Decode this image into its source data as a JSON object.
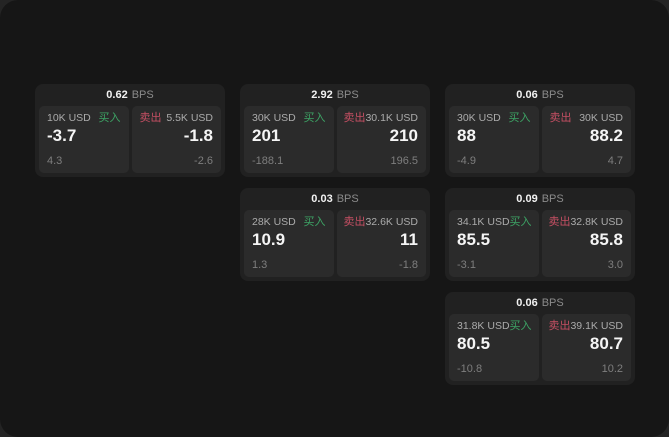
{
  "labels": {
    "buy": "买入",
    "sell": "卖出",
    "bps_unit": "BPS"
  },
  "colors": {
    "buy": "#3da465",
    "sell": "#c54f63",
    "window_bg": "#161616",
    "card_bg": "#212121",
    "panel_bg": "#2b2b2b"
  },
  "cards": [
    {
      "row": 1,
      "col": 1,
      "bps": "0.62",
      "buy": {
        "amount": "10K USD",
        "value": "-3.7",
        "sub": "4.3"
      },
      "sell": {
        "amount": "5.5K USD",
        "value": "-1.8",
        "sub": "-2.6"
      }
    },
    {
      "row": 1,
      "col": 2,
      "bps": "2.92",
      "buy": {
        "amount": "30K USD",
        "value": "201",
        "sub": "-188.1"
      },
      "sell": {
        "amount": "30.1K USD",
        "value": "210",
        "sub": "196.5"
      }
    },
    {
      "row": 1,
      "col": 3,
      "bps": "0.06",
      "buy": {
        "amount": "30K USD",
        "value": "88",
        "sub": "-4.9"
      },
      "sell": {
        "amount": "30K USD",
        "value": "88.2",
        "sub": "4.7"
      }
    },
    {
      "row": 2,
      "col": 2,
      "bps": "0.03",
      "buy": {
        "amount": "28K USD",
        "value": "10.9",
        "sub": "1.3"
      },
      "sell": {
        "amount": "32.6K USD",
        "value": "11",
        "sub": "-1.8"
      }
    },
    {
      "row": 2,
      "col": 3,
      "bps": "0.09",
      "buy": {
        "amount": "34.1K USD",
        "value": "85.5",
        "sub": "-3.1"
      },
      "sell": {
        "amount": "32.8K USD",
        "value": "85.8",
        "sub": "3.0"
      }
    },
    {
      "row": 3,
      "col": 3,
      "bps": "0.06",
      "buy": {
        "amount": "31.8K USD",
        "value": "80.5",
        "sub": "-10.8"
      },
      "sell": {
        "amount": "39.1K USD",
        "value": "80.7",
        "sub": "10.2"
      }
    }
  ]
}
